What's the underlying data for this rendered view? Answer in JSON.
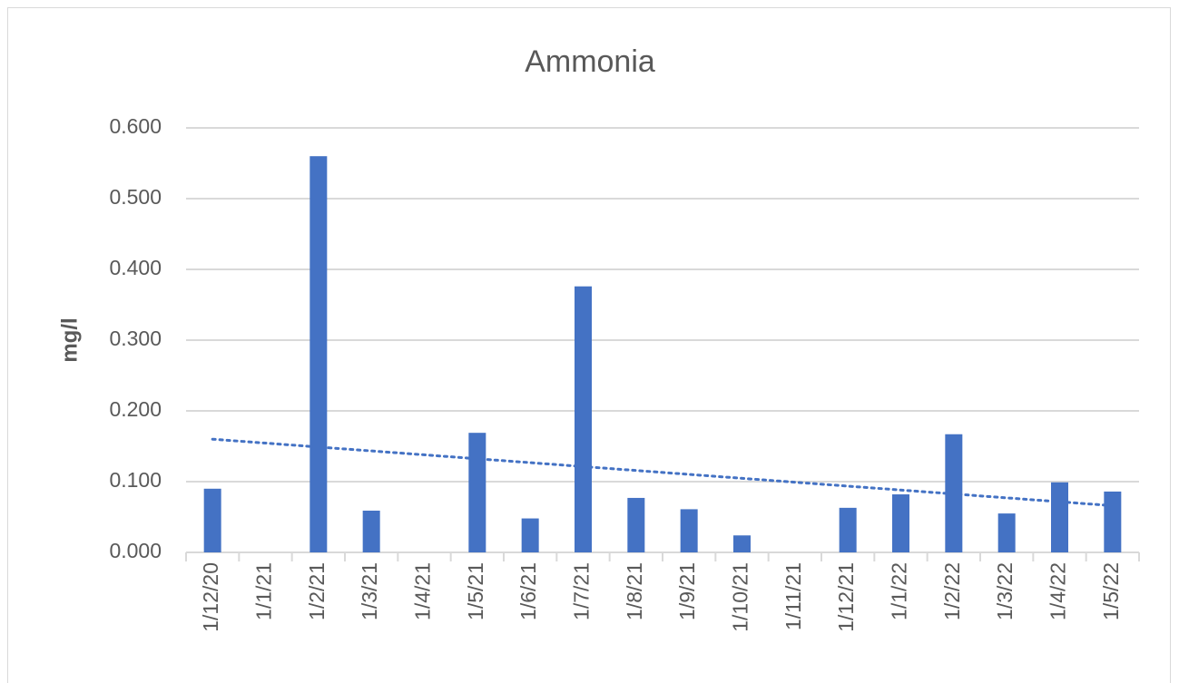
{
  "chart_data": {
    "type": "bar",
    "title": "Ammonia",
    "y_label": "mg/l",
    "categories": [
      "1/12/20",
      "1/1/21",
      "1/2/21",
      "1/3/21",
      "1/4/21",
      "1/5/21",
      "1/6/21",
      "1/7/21",
      "1/8/21",
      "1/9/21",
      "1/10/21",
      "1/11/21",
      "1/12/21",
      "1/1/22",
      "1/2/22",
      "1/3/22",
      "1/4/22",
      "1/5/22"
    ],
    "values": [
      0.09,
      null,
      0.56,
      0.059,
      null,
      0.169,
      0.048,
      0.376,
      0.077,
      0.061,
      0.024,
      null,
      0.063,
      0.082,
      0.167,
      0.055,
      0.099,
      0.086
    ],
    "color": "#4472c4",
    "trendline": {
      "type": "linear",
      "start": 0.16,
      "end": 0.066,
      "color": "#4472c4"
    },
    "ylim": [
      0,
      0.6
    ],
    "yticks": [
      {
        "value": 0,
        "label": "0.000"
      },
      {
        "value": 0.1,
        "label": "0.100"
      },
      {
        "value": 0.2,
        "label": "0.200"
      },
      {
        "value": 0.3,
        "label": "0.300"
      },
      {
        "value": 0.4,
        "label": "0.400"
      },
      {
        "value": 0.5,
        "label": "0.500"
      },
      {
        "value": 0.6,
        "label": "0.600"
      }
    ],
    "grid": true
  }
}
